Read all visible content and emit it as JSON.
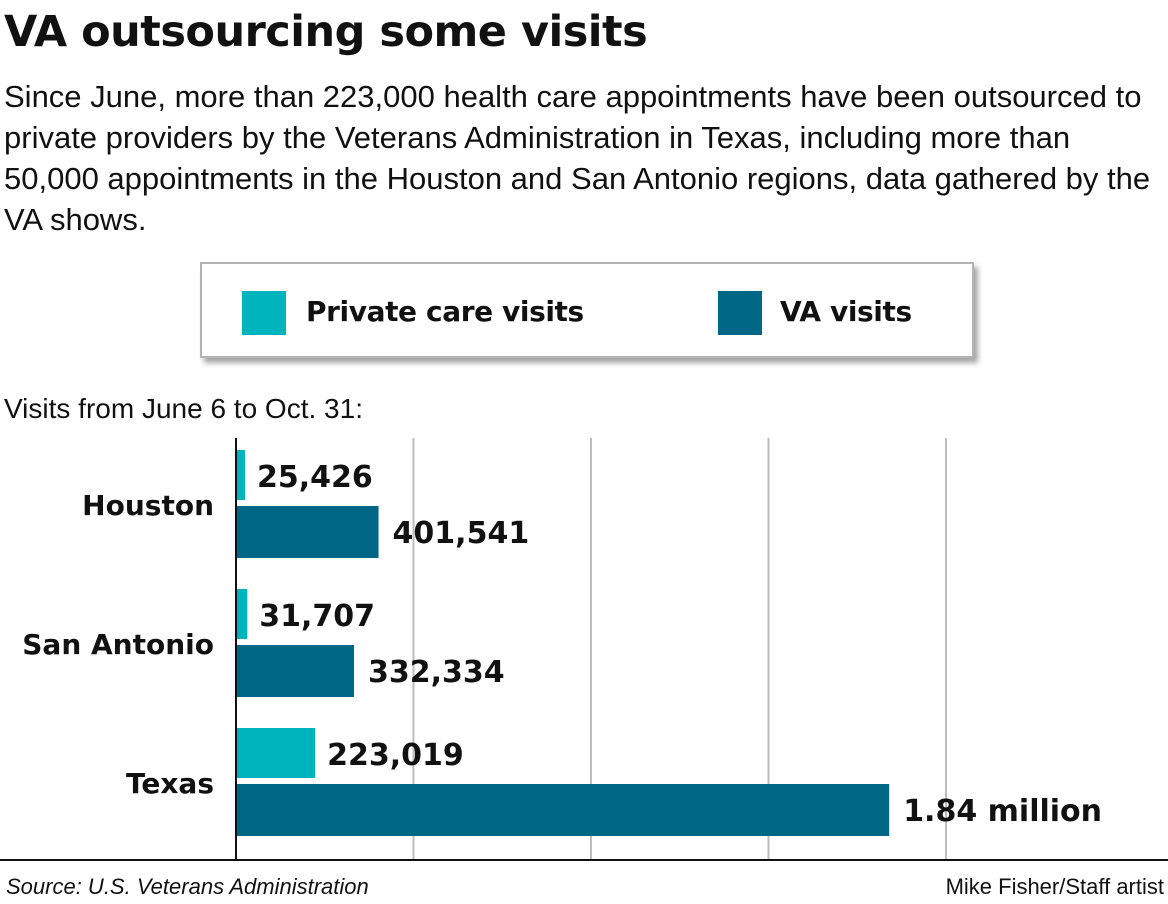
{
  "header": {
    "title": "VA outsourcing some visits",
    "subtitle": "Since June, more than 223,000 health care appointments have been outsourced to private providers by the Veterans Administration in Texas, including  more than 50,000 appointments in the Houston and San Antonio regions, data gathered by the VA shows."
  },
  "legend": {
    "placement": "top, above chart",
    "items": [
      {
        "label": "Private care visits",
        "color": "#00b4bd"
      },
      {
        "label": "VA visits",
        "color": "#006787"
      }
    ]
  },
  "chart_caption": "Visits from June 6 to Oct. 31:",
  "chart_data": {
    "type": "bar",
    "orientation": "horizontal",
    "title": "",
    "xlabel": "",
    "ylabel": "",
    "categories": [
      "Houston",
      "San Antonio",
      "Texas"
    ],
    "series": [
      {
        "name": "Private care visits",
        "color": "#00b4bd",
        "values": [
          25426,
          31707,
          223019
        ],
        "labels": [
          "25,426",
          "31,707",
          "223,019"
        ]
      },
      {
        "name": "VA visits",
        "color": "#006787",
        "values": [
          401541,
          332334,
          1840000
        ],
        "labels": [
          "401,541",
          "332,334",
          "1.84 million"
        ]
      }
    ],
    "xlim": [
      0,
      2000000
    ],
    "grid": true,
    "grid_color": "#bdbdbd"
  },
  "footer": {
    "source": "Source: U.S. Veterans Administration",
    "credit": "Mike Fisher/Staff artist"
  }
}
